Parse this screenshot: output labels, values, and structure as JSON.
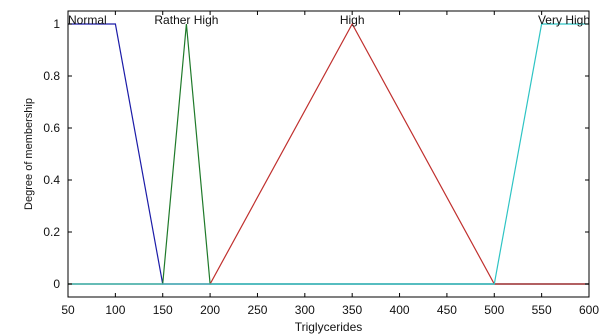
{
  "chart_data": {
    "type": "line",
    "title": "",
    "xlabel": "Triglycerides",
    "ylabel": "Degree of membership",
    "xlim": [
      50,
      600
    ],
    "ylim": [
      -0.05,
      1.05
    ],
    "grid": false,
    "x_ticks": [
      50,
      100,
      150,
      200,
      250,
      300,
      350,
      400,
      450,
      500,
      550,
      600
    ],
    "y_ticks": [
      0,
      0.2,
      0.4,
      0.6,
      0.8,
      1
    ],
    "y_tick_labels": [
      "0",
      "0.2",
      "0.4",
      "0.6",
      "0.8",
      "1"
    ],
    "series": [
      {
        "name": "Normal",
        "color": "#1c1ca8",
        "points": [
          [
            50,
            1
          ],
          [
            100,
            1
          ],
          [
            150,
            0
          ],
          [
            600,
            0
          ]
        ]
      },
      {
        "name": "Rather High",
        "color": "#1f7a2a",
        "points": [
          [
            50,
            0
          ],
          [
            150,
            0
          ],
          [
            175,
            1
          ],
          [
            200,
            0
          ],
          [
            600,
            0
          ]
        ]
      },
      {
        "name": "High",
        "color": "#c0302e",
        "points": [
          [
            50,
            0
          ],
          [
            200,
            0
          ],
          [
            350,
            1
          ],
          [
            500,
            0
          ],
          [
            600,
            0
          ]
        ]
      },
      {
        "name": "Very High",
        "color": "#2ec4c4",
        "points": [
          [
            50,
            0
          ],
          [
            500,
            0
          ],
          [
            550,
            1
          ],
          [
            600,
            1
          ]
        ]
      }
    ]
  }
}
